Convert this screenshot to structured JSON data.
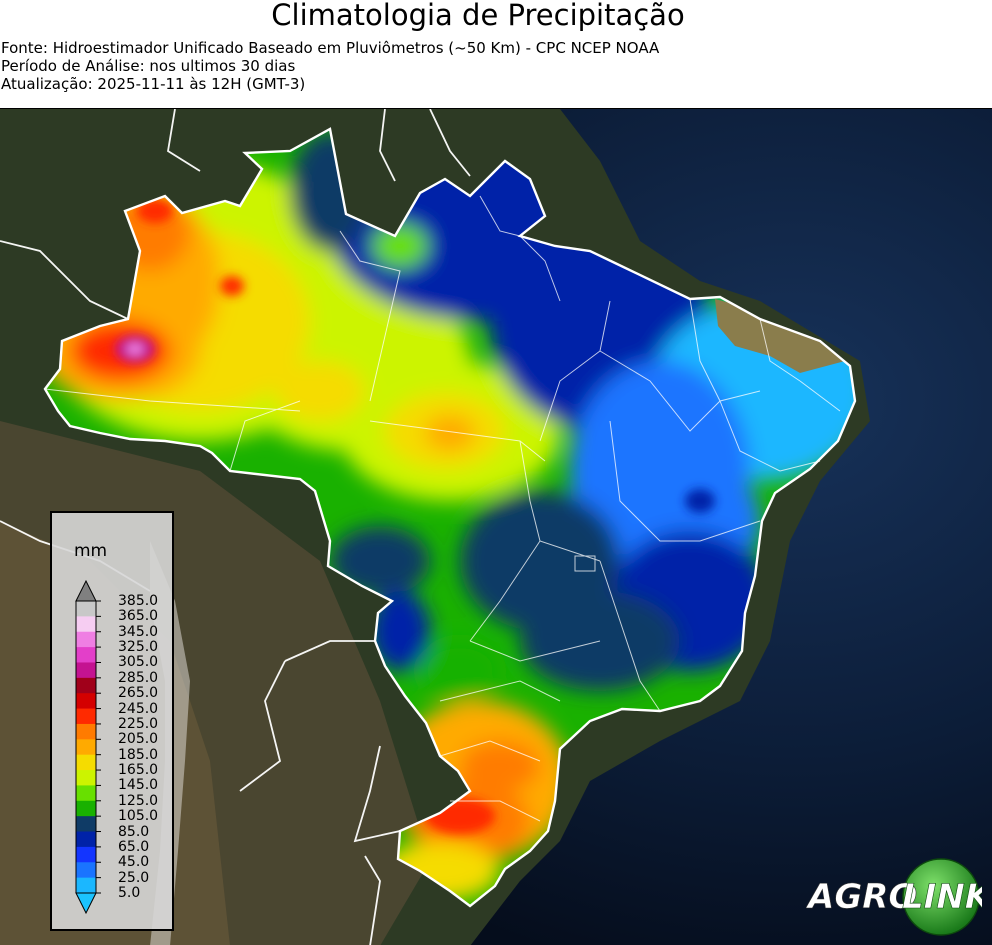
{
  "header": {
    "title": "Climatologia de Precipitação",
    "source": "Fonte: Hidroestimador Unificado Baseado em Pluviômetros (~50 Km) - CPC NCEP NOAA",
    "period": "Período de Análise: nos ultimos 30 dias",
    "updated": "Atualização: 2025-11-11 às 12H (GMT-3)"
  },
  "legend": {
    "unit": "mm",
    "levels": [
      "385.0",
      "365.0",
      "345.0",
      "325.0",
      "305.0",
      "285.0",
      "265.0",
      "245.0",
      "225.0",
      "205.0",
      "185.0",
      "165.0",
      "145.0",
      "125.0",
      "105.0",
      "85.0",
      "65.0",
      "45.0",
      "25.0",
      "5.0"
    ],
    "colors": [
      "#7d7d7d",
      "#c8c8c8",
      "#f6cdf2",
      "#ef7fe3",
      "#e33fc9",
      "#c41391",
      "#a0001a",
      "#d40000",
      "#ff2a00",
      "#ff7b00",
      "#ffaa00",
      "#f5dc00",
      "#ccf400",
      "#68e000",
      "#19b100",
      "#0f3b66",
      "#0022a8",
      "#1335ff",
      "#1a74ff",
      "#1bb7ff"
    ],
    "over_color": "#808080",
    "under_color": "#1bc3ff"
  },
  "logo": {
    "text_a": "AGRO",
    "text_b": "LINK"
  },
  "colors": {
    "ocean": "#0b1a30",
    "land": "#2e3a22",
    "semiarid": "#8a7d4c",
    "borders": "#ffffff"
  }
}
